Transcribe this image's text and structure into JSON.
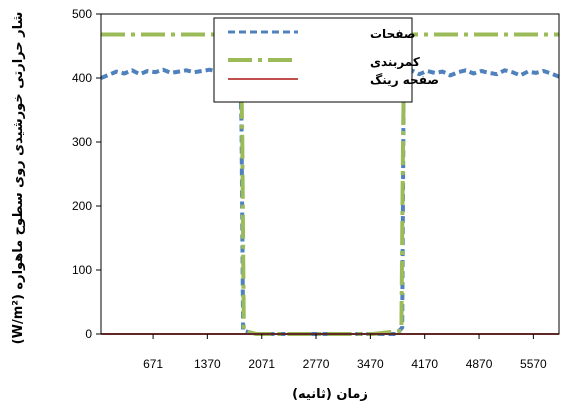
{
  "chart_data": {
    "type": "line",
    "xlabel": "زمان (ثانیه)",
    "ylabel": "شار حرارتی خورشیدی روی سطوح ماهواره (W/m²)",
    "xlim": [
      0,
      5900
    ],
    "ylim": [
      0,
      500
    ],
    "x_ticks": [
      671,
      1370,
      2071,
      2770,
      3470,
      4170,
      4870,
      5570
    ],
    "y_ticks": [
      0,
      100,
      200,
      300,
      400,
      500
    ],
    "legend_position": "top-center",
    "grid": false,
    "series": [
      {
        "name": "صفحات",
        "color": "#4f81bd",
        "style": "dashed",
        "x": [
          0,
          100,
          200,
          300,
          400,
          500,
          600,
          700,
          800,
          900,
          1000,
          1100,
          1200,
          1300,
          1400,
          1500,
          1600,
          1700,
          1790,
          1810,
          1830,
          2000,
          2500,
          3000,
          3500,
          3800,
          3880,
          3900,
          3920,
          4000,
          4100,
          4200,
          4300,
          4400,
          4500,
          4600,
          4700,
          4800,
          4900,
          5000,
          5100,
          5200,
          5300,
          5400,
          5500,
          5600,
          5700,
          5800,
          5900
        ],
        "y": [
          400,
          405,
          410,
          407,
          412,
          406,
          411,
          409,
          413,
          408,
          410,
          412,
          409,
          411,
          413,
          410,
          412,
          409,
          410,
          330,
          5,
          0,
          0,
          0,
          0,
          0,
          10,
          400,
          410,
          412,
          406,
          411,
          408,
          410,
          404,
          409,
          412,
          407,
          411,
          408,
          406,
          412,
          409,
          404,
          410,
          408,
          411,
          407,
          402
        ]
      },
      {
        "name": "کمربندی",
        "color": "#9bbb59",
        "style": "dashdot",
        "x": [
          0,
          1800,
          1820,
          1840,
          2000,
          2500,
          3000,
          3500,
          3870,
          3890,
          3910,
          5900
        ],
        "y": [
          468,
          468,
          300,
          5,
          0,
          0,
          0,
          0,
          5,
          300,
          468,
          468
        ]
      },
      {
        "name": "صفحه رینگ",
        "color": "#c0504d",
        "style": "solid",
        "x": [
          0,
          5900
        ],
        "y": [
          0,
          0
        ]
      }
    ]
  },
  "legend": {
    "item_1": "صفحات",
    "item_2_line1": "کمربندی",
    "item_2_line2": "صفحه رینگ"
  }
}
